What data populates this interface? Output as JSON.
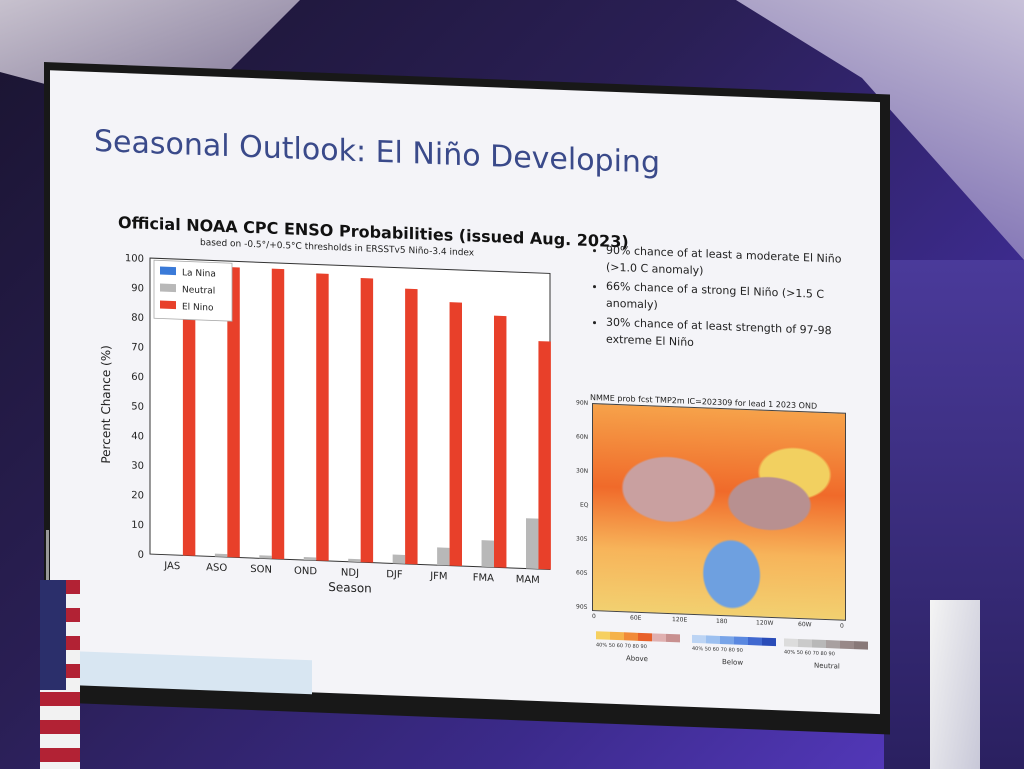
{
  "slide": {
    "title": "Seasonal Outlook: El Niño Developing",
    "bullets": [
      "90% chance of at least a moderate El Niño (>1.0 C anomaly)",
      "66% chance of a strong El Niño (>1.5 C anomaly)",
      "30% chance of at least strength of 97-98 extreme El Niño"
    ]
  },
  "chart_data": {
    "type": "bar",
    "title": "Official NOAA CPC ENSO Probabilities (issued Aug. 2023)",
    "subtitle": "based on -0.5°/+0.5°C thresholds in ERSSTv5 Niño-3.4 index",
    "xlabel": "Season",
    "ylabel": "Percent Chance (%)",
    "ylim": [
      0,
      100
    ],
    "yticks": [
      0,
      10,
      20,
      30,
      40,
      50,
      60,
      70,
      80,
      90,
      100
    ],
    "categories": [
      "JAS",
      "ASO",
      "SON",
      "OND",
      "NDJ",
      "DJF",
      "JFM",
      "FMA",
      "MAM"
    ],
    "legend_position": "top-left",
    "series": [
      {
        "name": "La Nina",
        "color": "#3a7ad8",
        "values": [
          0,
          0,
          0,
          0,
          0,
          0,
          0,
          0,
          0
        ]
      },
      {
        "name": "Neutral",
        "color": "#b8b8b8",
        "values": [
          0,
          1,
          1,
          1,
          1,
          3,
          6,
          9,
          17
        ]
      },
      {
        "name": "El Nino",
        "color": "#e8402a",
        "values": [
          99,
          98,
          98,
          97,
          96,
          93,
          89,
          85,
          77
        ]
      }
    ]
  },
  "map": {
    "title": "NMME prob fcst TMP2m IC=202309 for lead 1 2023 OND",
    "lat_labels": [
      "90N",
      "60N",
      "30N",
      "EQ",
      "30S",
      "60S",
      "90S"
    ],
    "lon_labels": [
      "0",
      "60E",
      "120E",
      "180",
      "120W",
      "60W",
      "0"
    ],
    "legend": [
      {
        "caption": "Above",
        "ticks": "40% 50 60 70 80 90",
        "colors": [
          "#f6d060",
          "#f5b24a",
          "#f18a38",
          "#e8602a",
          "#e0b0b0",
          "#c89090"
        ]
      },
      {
        "caption": "Below",
        "ticks": "40% 50 60 70 80 90",
        "colors": [
          "#bcd4f4",
          "#9cc0f0",
          "#78a4e8",
          "#5a88e0",
          "#4068d0",
          "#2a4cb8"
        ]
      },
      {
        "caption": "Neutral",
        "ticks": "40% 50 60 70 80 90",
        "colors": [
          "#dcdcdc",
          "#cacaca",
          "#b8b8b8",
          "#a8a0a0",
          "#988888",
          "#887878"
        ]
      }
    ]
  }
}
